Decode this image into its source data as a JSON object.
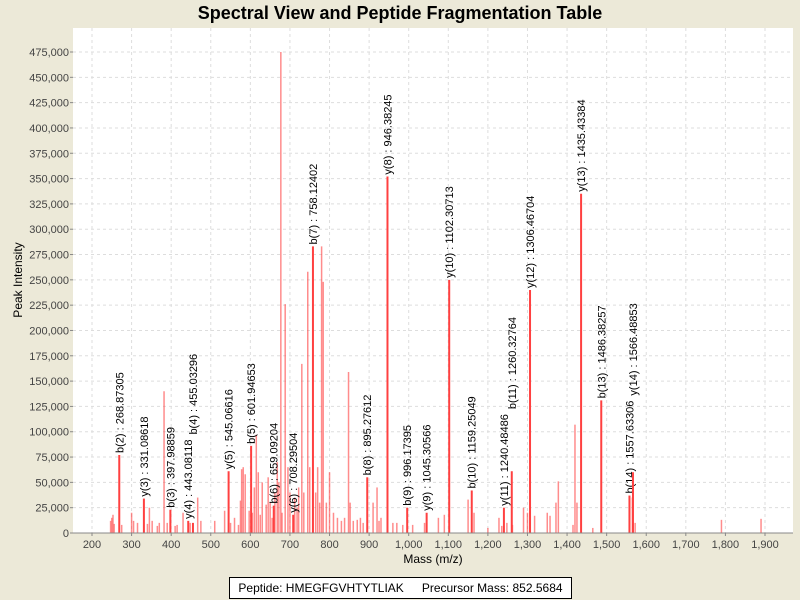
{
  "chart_data": {
    "type": "bar",
    "title": "Spectral View and Peptide Fragmentation Table",
    "xlabel": "Mass (m/z)",
    "ylabel": "Peak Intensity",
    "xlim": [
      150,
      1960
    ],
    "ylim": [
      0,
      475000
    ],
    "xticks": [
      200,
      300,
      400,
      500,
      600,
      700,
      800,
      900,
      1000,
      1100,
      1200,
      1300,
      1400,
      1500,
      1600,
      1700,
      1800,
      1900
    ],
    "xtick_labels": [
      "200",
      "300",
      "400",
      "500",
      "600",
      "700",
      "800",
      "900",
      "1,000",
      "1,100",
      "1,200",
      "1,300",
      "1,400",
      "1,500",
      "1,600",
      "1,700",
      "1,800",
      "1,900"
    ],
    "yticks": [
      0,
      25000,
      50000,
      75000,
      100000,
      125000,
      150000,
      175000,
      200000,
      225000,
      250000,
      275000,
      300000,
      325000,
      350000,
      375000,
      400000,
      425000,
      450000,
      475000
    ],
    "ytick_labels": [
      "0",
      "25,000",
      "50,000",
      "75,000",
      "100,000",
      "125,000",
      "150,000",
      "175,000",
      "200,000",
      "225,000",
      "250,000",
      "275,000",
      "300,000",
      "325,000",
      "350,000",
      "375,000",
      "400,000",
      "425,000",
      "450,000",
      "475,000"
    ],
    "grid": true,
    "peaks": [
      [
        247,
        12000
      ],
      [
        250,
        15000
      ],
      [
        253,
        18000
      ],
      [
        256,
        9000
      ],
      [
        275,
        8000
      ],
      [
        300,
        20000
      ],
      [
        305,
        12000
      ],
      [
        315,
        10000
      ],
      [
        340,
        9000
      ],
      [
        345,
        25000
      ],
      [
        352,
        12000
      ],
      [
        365,
        7000
      ],
      [
        370,
        10000
      ],
      [
        382,
        140000
      ],
      [
        390,
        10000
      ],
      [
        410,
        7000
      ],
      [
        415,
        8000
      ],
      [
        430,
        20000
      ],
      [
        448,
        10000
      ],
      [
        467,
        35000
      ],
      [
        475,
        12000
      ],
      [
        510,
        12000
      ],
      [
        535,
        22000
      ],
      [
        550,
        10000
      ],
      [
        560,
        15000
      ],
      [
        570,
        8000
      ],
      [
        575,
        32000
      ],
      [
        578,
        63000
      ],
      [
        582,
        65000
      ],
      [
        587,
        58000
      ],
      [
        597,
        22000
      ],
      [
        605,
        20000
      ],
      [
        610,
        45000
      ],
      [
        615,
        97000
      ],
      [
        620,
        60000
      ],
      [
        625,
        18000
      ],
      [
        630,
        50000
      ],
      [
        640,
        28000
      ],
      [
        645,
        55000
      ],
      [
        650,
        30000
      ],
      [
        655,
        15000
      ],
      [
        662,
        40000
      ],
      [
        668,
        70000
      ],
      [
        672,
        50000
      ],
      [
        677,
        475000
      ],
      [
        680,
        20000
      ],
      [
        688,
        226000
      ],
      [
        695,
        65000
      ],
      [
        700,
        40000
      ],
      [
        712,
        35000
      ],
      [
        718,
        25000
      ],
      [
        722,
        45000
      ],
      [
        730,
        167000
      ],
      [
        735,
        40000
      ],
      [
        745,
        258000
      ],
      [
        750,
        65000
      ],
      [
        765,
        40000
      ],
      [
        770,
        65000
      ],
      [
        775,
        30000
      ],
      [
        780,
        283000
      ],
      [
        784,
        248000
      ],
      [
        792,
        30000
      ],
      [
        800,
        60000
      ],
      [
        810,
        20000
      ],
      [
        820,
        15000
      ],
      [
        830,
        12000
      ],
      [
        838,
        15000
      ],
      [
        848,
        159000
      ],
      [
        852,
        30000
      ],
      [
        860,
        12000
      ],
      [
        870,
        13000
      ],
      [
        878,
        15000
      ],
      [
        885,
        10000
      ],
      [
        910,
        30000
      ],
      [
        920,
        45000
      ],
      [
        925,
        12000
      ],
      [
        930,
        15000
      ],
      [
        960,
        10000
      ],
      [
        970,
        10000
      ],
      [
        985,
        8000
      ],
      [
        1010,
        8000
      ],
      [
        1040,
        10000
      ],
      [
        1075,
        15000
      ],
      [
        1090,
        18000
      ],
      [
        1150,
        33000
      ],
      [
        1165,
        20000
      ],
      [
        1200,
        5000
      ],
      [
        1228,
        15000
      ],
      [
        1235,
        7000
      ],
      [
        1248,
        10000
      ],
      [
        1262,
        8000
      ],
      [
        1290,
        25000
      ],
      [
        1300,
        20000
      ],
      [
        1318,
        17000
      ],
      [
        1350,
        20000
      ],
      [
        1357,
        17000
      ],
      [
        1372,
        30000
      ],
      [
        1378,
        51000
      ],
      [
        1415,
        8000
      ],
      [
        1420,
        107000
      ],
      [
        1425,
        30000
      ],
      [
        1465,
        5000
      ],
      [
        1565,
        35000
      ],
      [
        1572,
        10000
      ],
      [
        1790,
        13000
      ],
      [
        1890,
        14000
      ]
    ],
    "annotations": [
      {
        "ion": "b(2)",
        "mz": 268.87305,
        "label": "b(2) : 268.87305",
        "intensity": 77000
      },
      {
        "ion": "y(3)",
        "mz": 331.08618,
        "label": "y(3) : 331.08618",
        "intensity": 34000
      },
      {
        "ion": "b(3)",
        "mz": 397.98859,
        "label": "b(3) : 397.98859",
        "intensity": 23000
      },
      {
        "ion": "y(4)",
        "mz": 443.08118,
        "label": "y(4) : 443.08118",
        "intensity": 12000
      },
      {
        "ion": "b(4)",
        "mz": 455.03296,
        "label": "b(4) : 455.03296",
        "intensity": 10000
      },
      {
        "ion": "y(5)",
        "mz": 545.06616,
        "label": "y(5) : 545.06616",
        "intensity": 61000
      },
      {
        "ion": "b(5)",
        "mz": 601.94653,
        "label": "b(5) : 601.94653",
        "intensity": 86000
      },
      {
        "ion": "b(6)",
        "mz": 659.09204,
        "label": "b(6) : 659.09204",
        "intensity": 27000
      },
      {
        "ion": "y(6)",
        "mz": 708.29504,
        "label": "y(6) : 708.29504",
        "intensity": 18000
      },
      {
        "ion": "b(7)",
        "mz": 758.12402,
        "label": "b(7) : 758.12402",
        "intensity": 283000
      },
      {
        "ion": "b(8)",
        "mz": 895.27612,
        "label": "b(8) : 895.27612",
        "intensity": 55000
      },
      {
        "ion": "y(8)",
        "mz": 946.38245,
        "label": "y(8) : 946.38245",
        "intensity": 352000
      },
      {
        "ion": "b(9)",
        "mz": 996.17395,
        "label": "b(9) : 996.17395",
        "intensity": 25000
      },
      {
        "ion": "y(9)",
        "mz": 1045.30566,
        "label": "y(9) : 1045.30566",
        "intensity": 20000
      },
      {
        "ion": "y(10)",
        "mz": 1102.30713,
        "label": "y(10) : 1102.30713",
        "intensity": 250000
      },
      {
        "ion": "b(10)",
        "mz": 1159.25049,
        "label": "b(10) : 1159.25049",
        "intensity": 42000
      },
      {
        "ion": "y(11)",
        "mz": 1240.48486,
        "label": "y(11) : 1240.48486",
        "intensity": 25000
      },
      {
        "ion": "b(11)",
        "mz": 1260.32764,
        "label": "b(11) : 1260.32764",
        "intensity": 61000
      },
      {
        "ion": "y(12)",
        "mz": 1306.46704,
        "label": "y(12) : 1306.46704",
        "intensity": 240000
      },
      {
        "ion": "y(13)",
        "mz": 1435.43384,
        "label": "y(13) : 1435.43384",
        "intensity": 335000
      },
      {
        "ion": "b(13)",
        "mz": 1486.38257,
        "label": "b(13) : 1486.38257",
        "intensity": 131000
      },
      {
        "ion": "b(14)",
        "mz": 1557.63306,
        "label": "b(14) : 1557.63306",
        "intensity": 37000
      },
      {
        "ion": "y(14)",
        "mz": 1566.48853,
        "label": "y(14) : 1566.48853",
        "intensity": 60000
      }
    ],
    "color": "#ff4040"
  },
  "legend": {
    "peptide": "Peptide: HMEGFGVHTYTLIAK",
    "precursor": "Precursor Mass: 852.5684"
  }
}
